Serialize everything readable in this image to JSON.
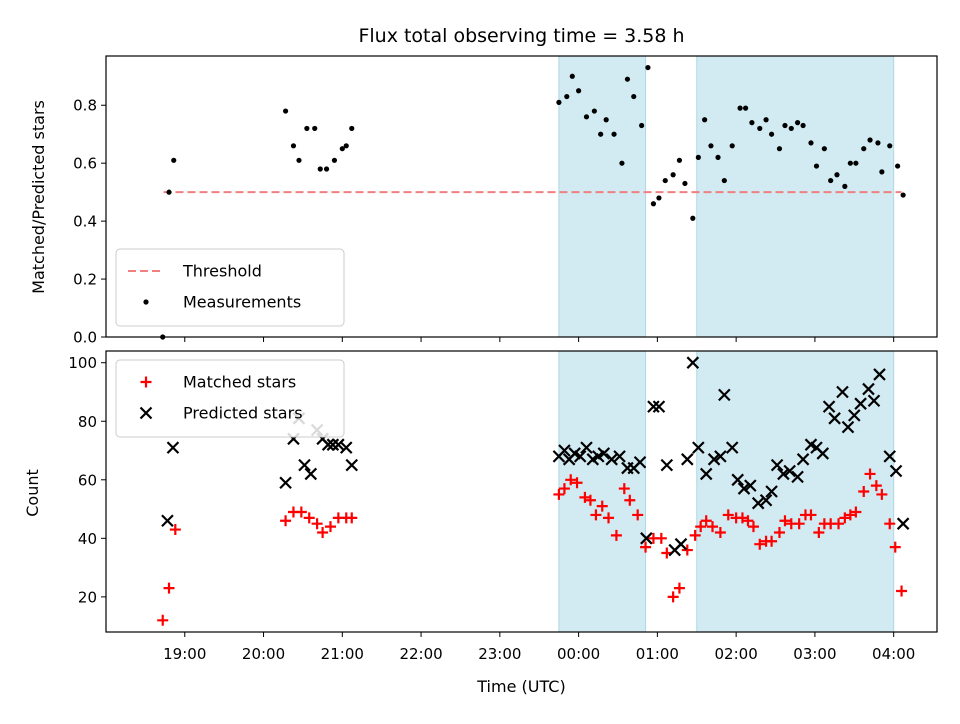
{
  "chart_data": {
    "type": "scatter",
    "title": "Flux total observing time = 3.58 h",
    "xlabel": "Time (UTC)",
    "x_ticks": [
      "19:00",
      "20:00",
      "21:00",
      "22:00",
      "23:00",
      "00:00",
      "01:00",
      "02:00",
      "03:00",
      "04:00"
    ],
    "xlim_hours": [
      18.0,
      28.55
    ],
    "highlighted_spans_hours": [
      [
        23.75,
        24.85
      ],
      [
        25.5,
        28.0
      ]
    ],
    "highlight_color": "#add8e6",
    "panels": [
      {
        "ylabel": "Matched/Predicted stars",
        "ylim": [
          0.0,
          0.97
        ],
        "y_ticks": [
          0.0,
          0.2,
          0.4,
          0.6,
          0.8
        ],
        "legend_position": "lower-left",
        "threshold": {
          "name": "Threshold",
          "value": 0.5,
          "x_range_hours": [
            18.73,
            28.1
          ],
          "color": "#f08080",
          "style": "dashed"
        },
        "series": [
          {
            "name": "Measurements",
            "marker": "dot",
            "color": "#000000",
            "points": [
              [
                18.72,
                0.0
              ],
              [
                18.8,
                0.5
              ],
              [
                18.86,
                0.61
              ],
              [
                20.28,
                0.78
              ],
              [
                20.38,
                0.66
              ],
              [
                20.45,
                0.61
              ],
              [
                20.55,
                0.72
              ],
              [
                20.65,
                0.72
              ],
              [
                20.72,
                0.58
              ],
              [
                20.8,
                0.58
              ],
              [
                20.9,
                0.61
              ],
              [
                21.0,
                0.65
              ],
              [
                21.05,
                0.66
              ],
              [
                21.12,
                0.72
              ],
              [
                23.75,
                0.81
              ],
              [
                23.85,
                0.83
              ],
              [
                23.92,
                0.9
              ],
              [
                24.0,
                0.85
              ],
              [
                24.1,
                0.76
              ],
              [
                24.2,
                0.78
              ],
              [
                24.28,
                0.7
              ],
              [
                24.35,
                0.75
              ],
              [
                24.45,
                0.7
              ],
              [
                24.55,
                0.6
              ],
              [
                24.62,
                0.89
              ],
              [
                24.7,
                0.83
              ],
              [
                24.8,
                0.73
              ],
              [
                24.88,
                0.93
              ],
              [
                24.95,
                0.46
              ],
              [
                25.02,
                0.48
              ],
              [
                25.1,
                0.54
              ],
              [
                25.2,
                0.56
              ],
              [
                25.28,
                0.61
              ],
              [
                25.35,
                0.53
              ],
              [
                25.45,
                0.41
              ],
              [
                25.52,
                0.62
              ],
              [
                25.6,
                0.75
              ],
              [
                25.68,
                0.66
              ],
              [
                25.77,
                0.62
              ],
              [
                25.85,
                0.54
              ],
              [
                25.95,
                0.66
              ],
              [
                26.05,
                0.79
              ],
              [
                26.12,
                0.79
              ],
              [
                26.2,
                0.74
              ],
              [
                26.3,
                0.72
              ],
              [
                26.38,
                0.75
              ],
              [
                26.45,
                0.7
              ],
              [
                26.55,
                0.65
              ],
              [
                26.62,
                0.73
              ],
              [
                26.7,
                0.72
              ],
              [
                26.78,
                0.74
              ],
              [
                26.85,
                0.73
              ],
              [
                26.95,
                0.67
              ],
              [
                27.02,
                0.59
              ],
              [
                27.12,
                0.65
              ],
              [
                27.2,
                0.54
              ],
              [
                27.28,
                0.56
              ],
              [
                27.38,
                0.52
              ],
              [
                27.45,
                0.6
              ],
              [
                27.52,
                0.6
              ],
              [
                27.62,
                0.65
              ],
              [
                27.7,
                0.68
              ],
              [
                27.8,
                0.67
              ],
              [
                27.85,
                0.57
              ],
              [
                27.95,
                0.66
              ],
              [
                28.05,
                0.59
              ],
              [
                28.12,
                0.49
              ]
            ]
          }
        ]
      },
      {
        "ylabel": "Count",
        "ylim": [
          8,
          104
        ],
        "y_ticks": [
          20,
          40,
          60,
          80,
          100
        ],
        "legend_position": "upper-left",
        "series": [
          {
            "name": "Matched stars",
            "marker": "plus",
            "color": "#ff0000",
            "points": [
              [
                18.72,
                12
              ],
              [
                18.8,
                23
              ],
              [
                18.88,
                43
              ],
              [
                20.28,
                46
              ],
              [
                20.38,
                49
              ],
              [
                20.48,
                49
              ],
              [
                20.58,
                47
              ],
              [
                20.68,
                45
              ],
              [
                20.75,
                42
              ],
              [
                20.85,
                44
              ],
              [
                20.95,
                47
              ],
              [
                21.05,
                47
              ],
              [
                21.12,
                47
              ],
              [
                23.75,
                55
              ],
              [
                23.82,
                57
              ],
              [
                23.9,
                60
              ],
              [
                23.98,
                59
              ],
              [
                24.08,
                54
              ],
              [
                24.15,
                53
              ],
              [
                24.22,
                48
              ],
              [
                24.3,
                51
              ],
              [
                24.38,
                47
              ],
              [
                24.48,
                41
              ],
              [
                24.58,
                57
              ],
              [
                24.65,
                53
              ],
              [
                24.75,
                48
              ],
              [
                24.85,
                37
              ],
              [
                24.95,
                40
              ],
              [
                25.05,
                40
              ],
              [
                25.12,
                35
              ],
              [
                25.2,
                20
              ],
              [
                25.28,
                23
              ],
              [
                25.38,
                36
              ],
              [
                25.48,
                41
              ],
              [
                25.55,
                44
              ],
              [
                25.62,
                46
              ],
              [
                25.7,
                44
              ],
              [
                25.8,
                42
              ],
              [
                25.9,
                48
              ],
              [
                26.0,
                47
              ],
              [
                26.08,
                47
              ],
              [
                26.15,
                46
              ],
              [
                26.22,
                44
              ],
              [
                26.3,
                38
              ],
              [
                26.38,
                39
              ],
              [
                26.45,
                39
              ],
              [
                26.55,
                42
              ],
              [
                26.62,
                46
              ],
              [
                26.7,
                45
              ],
              [
                26.8,
                45
              ],
              [
                26.88,
                48
              ],
              [
                26.95,
                48
              ],
              [
                27.05,
                42
              ],
              [
                27.12,
                45
              ],
              [
                27.2,
                45
              ],
              [
                27.3,
                45
              ],
              [
                27.38,
                47
              ],
              [
                27.45,
                48
              ],
              [
                27.52,
                49
              ],
              [
                27.62,
                56
              ],
              [
                27.7,
                62
              ],
              [
                27.78,
                58
              ],
              [
                27.85,
                55
              ],
              [
                27.95,
                45
              ],
              [
                28.02,
                37
              ],
              [
                28.1,
                22
              ]
            ]
          },
          {
            "name": "Predicted stars",
            "marker": "x",
            "color": "#000000",
            "points": [
              [
                18.78,
                46
              ],
              [
                18.85,
                71
              ],
              [
                20.28,
                59
              ],
              [
                20.38,
                74
              ],
              [
                20.45,
                81
              ],
              [
                20.52,
                65
              ],
              [
                20.6,
                62
              ],
              [
                20.68,
                77
              ],
              [
                20.75,
                74
              ],
              [
                20.82,
                72
              ],
              [
                20.88,
                72
              ],
              [
                20.95,
                72
              ],
              [
                21.05,
                71
              ],
              [
                21.12,
                65
              ],
              [
                23.75,
                68
              ],
              [
                23.82,
                70
              ],
              [
                23.88,
                67
              ],
              [
                23.95,
                69
              ],
              [
                24.02,
                68
              ],
              [
                24.1,
                71
              ],
              [
                24.18,
                67
              ],
              [
                24.25,
                68
              ],
              [
                24.32,
                69
              ],
              [
                24.42,
                67
              ],
              [
                24.52,
                68
              ],
              [
                24.62,
                64
              ],
              [
                24.7,
                64
              ],
              [
                24.78,
                66
              ],
              [
                24.86,
                40
              ],
              [
                24.95,
                85
              ],
              [
                25.02,
                85
              ],
              [
                25.12,
                65
              ],
              [
                25.22,
                36
              ],
              [
                25.3,
                38
              ],
              [
                25.38,
                67
              ],
              [
                25.45,
                100
              ],
              [
                25.52,
                71
              ],
              [
                25.62,
                62
              ],
              [
                25.72,
                67
              ],
              [
                25.8,
                68
              ],
              [
                25.85,
                89
              ],
              [
                25.95,
                71
              ],
              [
                26.02,
                60
              ],
              [
                26.1,
                57
              ],
              [
                26.18,
                58
              ],
              [
                26.28,
                52
              ],
              [
                26.38,
                53
              ],
              [
                26.45,
                56
              ],
              [
                26.52,
                65
              ],
              [
                26.6,
                62
              ],
              [
                26.68,
                63
              ],
              [
                26.78,
                61
              ],
              [
                26.85,
                67
              ],
              [
                26.95,
                72
              ],
              [
                27.02,
                71
              ],
              [
                27.1,
                69
              ],
              [
                27.18,
                85
              ],
              [
                27.25,
                81
              ],
              [
                27.35,
                90
              ],
              [
                27.42,
                78
              ],
              [
                27.5,
                82
              ],
              [
                27.58,
                86
              ],
              [
                27.68,
                91
              ],
              [
                27.75,
                87
              ],
              [
                27.82,
                96
              ],
              [
                27.95,
                68
              ],
              [
                28.03,
                63
              ],
              [
                28.12,
                45
              ]
            ]
          }
        ]
      }
    ]
  }
}
